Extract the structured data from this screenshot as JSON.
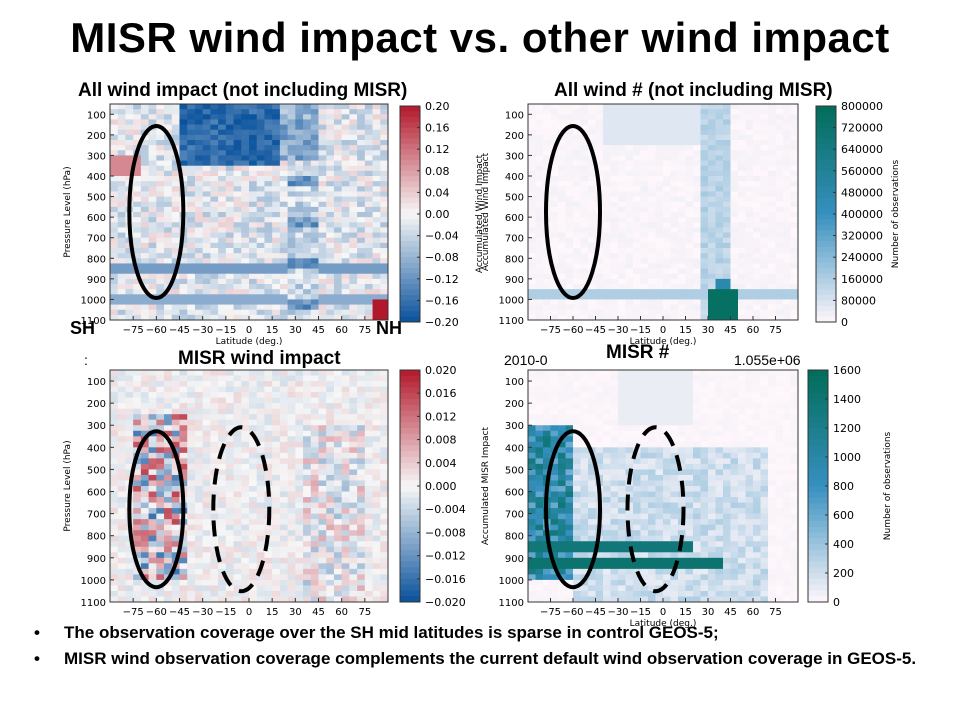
{
  "slide": {
    "title": "MISR wind impact vs. other wind impact",
    "bullets": [
      "The observation coverage over the SH mid latitudes is sparse in control GEOS-5;",
      "MISR wind observation coverage complements the current default wind observation coverage in GEOS-5."
    ],
    "bullet_glyph": "•",
    "region_labels": {
      "sh": "SH",
      "nh": "NH"
    },
    "stray_text": {
      "top_right_fragment_left": "2010-0",
      "top_right_fragment_right": "1.055e+06",
      "left_fragment": ":"
    }
  },
  "chart_data": [
    {
      "type": "heatmap",
      "title": "All wind impact (not including MISR)",
      "xlabel": "Latitude (deg.)",
      "ylabel": "Pressure Level (hPa)",
      "colorbar_label": "Accumulated Wind Impact",
      "colormap": "diverging",
      "x_ticks": [
        -75,
        -60,
        -45,
        -30,
        -15,
        0,
        15,
        30,
        45,
        60,
        75
      ],
      "y_ticks": [
        100,
        200,
        300,
        400,
        500,
        600,
        700,
        800,
        900,
        1000,
        1100
      ],
      "xlim": [
        -90,
        90
      ],
      "ylim": [
        1100,
        50
      ],
      "colorbar_ticks": [
        "0.20",
        "0.16",
        "0.12",
        "0.08",
        "0.04",
        "0.00",
        "−0.04",
        "−0.08",
        "−0.12",
        "−0.16",
        "−0.20"
      ],
      "colorbar_range": [
        -0.2,
        0.2
      ],
      "annotation": "solid-ellipse-sh",
      "colors": {
        "neg": "#08519c",
        "pos": "#b2182b",
        "zero": "#f7f7f7"
      }
    },
    {
      "type": "heatmap",
      "title": "All wind # (not including MISR)",
      "xlabel": "Latitude (deg.)",
      "ylabel": "Accumulated Wind Impact",
      "colorbar_label": "Number of observations",
      "colormap": "sequential",
      "x_ticks": [
        -75,
        -60,
        -45,
        -30,
        -15,
        0,
        15,
        30,
        45,
        60,
        75
      ],
      "y_ticks": [
        100,
        200,
        300,
        400,
        500,
        600,
        700,
        800,
        900,
        1000,
        1100
      ],
      "xlim": [
        -90,
        90
      ],
      "ylim": [
        1100,
        50
      ],
      "colorbar_ticks": [
        "800000",
        "720000",
        "640000",
        "560000",
        "480000",
        "400000",
        "320000",
        "240000",
        "160000",
        "80000",
        "0"
      ],
      "colorbar_range": [
        0,
        800000
      ],
      "annotation": "solid-ellipse-sh",
      "colors": {
        "high": "#016c59",
        "mid": "#3690c0",
        "low": "#fff7fb"
      }
    },
    {
      "type": "heatmap",
      "title": "MISR wind impact",
      "xlabel": "",
      "ylabel": "Pressure Level (hPa)",
      "colorbar_label": "",
      "colormap": "diverging",
      "x_ticks": [
        -75,
        -60,
        -45,
        -30,
        -15,
        0,
        15,
        30,
        45,
        60,
        75
      ],
      "y_ticks": [
        100,
        200,
        300,
        400,
        500,
        600,
        700,
        800,
        900,
        1000,
        1100
      ],
      "xlim": [
        -90,
        90
      ],
      "ylim": [
        1100,
        50
      ],
      "colorbar_ticks": [
        "0.020",
        "0.016",
        "0.012",
        "0.008",
        "0.004",
        "0.000",
        "−0.004",
        "−0.008",
        "−0.012",
        "−0.016",
        "−0.020"
      ],
      "colorbar_range": [
        -0.02,
        0.02
      ],
      "annotation": "solid-ellipse-sh-and-dashed-ellipse-tropics",
      "colors": {
        "neg": "#08519c",
        "pos": "#b2182b",
        "zero": "#f7f7f7"
      }
    },
    {
      "type": "heatmap",
      "title": "MISR #",
      "xlabel": "Latitude (deg.)",
      "ylabel": "Accumulated MISR Impact",
      "colorbar_label": "Number of observations",
      "colormap": "sequential",
      "x_ticks": [
        -75,
        -60,
        -45,
        -30,
        -15,
        0,
        15,
        30,
        45,
        60,
        75
      ],
      "y_ticks": [
        100,
        200,
        300,
        400,
        500,
        600,
        700,
        800,
        900,
        1000,
        1100
      ],
      "xlim": [
        -90,
        90
      ],
      "ylim": [
        1100,
        50
      ],
      "colorbar_ticks": [
        "1600",
        "1400",
        "1200",
        "1000",
        "800",
        "600",
        "400",
        "200",
        "0"
      ],
      "colorbar_range": [
        0,
        1600
      ],
      "annotation": "solid-ellipse-sh-and-dashed-ellipse-tropics",
      "colors": {
        "high": "#016c59",
        "mid": "#3690c0",
        "low": "#fff7fb"
      }
    }
  ]
}
